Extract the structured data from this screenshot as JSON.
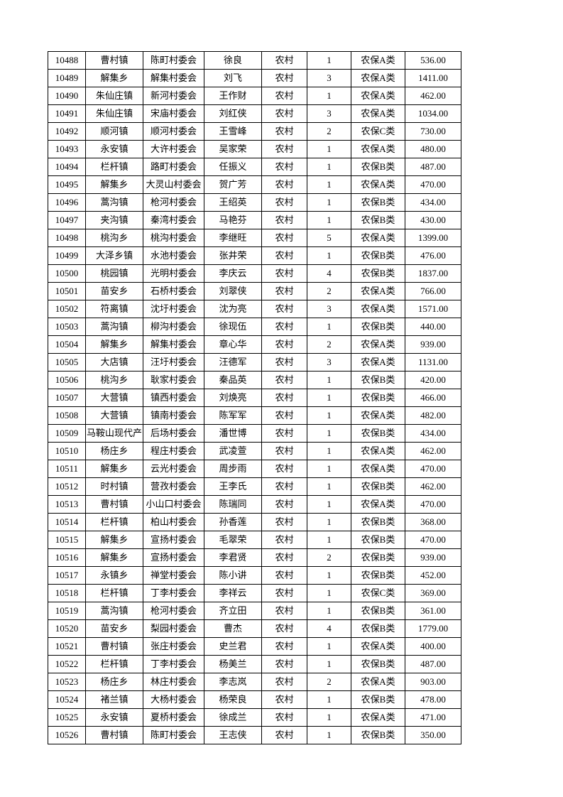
{
  "table": {
    "rows": [
      [
        "10488",
        "曹村镇",
        "陈町村委会",
        "徐良",
        "农村",
        "1",
        "农保A类",
        "536.00"
      ],
      [
        "10489",
        "解集乡",
        "解集村委会",
        "刘飞",
        "农村",
        "3",
        "农保A类",
        "1411.00"
      ],
      [
        "10490",
        "朱仙庄镇",
        "新河村委会",
        "王作财",
        "农村",
        "1",
        "农保A类",
        "462.00"
      ],
      [
        "10491",
        "朱仙庄镇",
        "宋庙村委会",
        "刘红侠",
        "农村",
        "3",
        "农保A类",
        "1034.00"
      ],
      [
        "10492",
        "顺河镇",
        "顺河村委会",
        "王雪峰",
        "农村",
        "2",
        "农保C类",
        "730.00"
      ],
      [
        "10493",
        "永安镇",
        "大许村委会",
        "吴家荣",
        "农村",
        "1",
        "农保A类",
        "480.00"
      ],
      [
        "10494",
        "栏杆镇",
        "路町村委会",
        "任振义",
        "农村",
        "1",
        "农保B类",
        "487.00"
      ],
      [
        "10495",
        "解集乡",
        "大灵山村委会",
        "贺广芳",
        "农村",
        "1",
        "农保A类",
        "470.00"
      ],
      [
        "10496",
        "蒿沟镇",
        "枪河村委会",
        "王绍英",
        "农村",
        "1",
        "农保B类",
        "434.00"
      ],
      [
        "10497",
        "夹沟镇",
        "秦湾村委会",
        "马艳芬",
        "农村",
        "1",
        "农保B类",
        "430.00"
      ],
      [
        "10498",
        "桃沟乡",
        "桃沟村委会",
        "李继旺",
        "农村",
        "5",
        "农保A类",
        "1399.00"
      ],
      [
        "10499",
        "大泽乡镇",
        "水池村委会",
        "张井荣",
        "农村",
        "1",
        "农保B类",
        "476.00"
      ],
      [
        "10500",
        "桃园镇",
        "光明村委会",
        "李庆云",
        "农村",
        "4",
        "农保B类",
        "1837.00"
      ],
      [
        "10501",
        "苗安乡",
        "石桥村委会",
        "刘翠侠",
        "农村",
        "2",
        "农保A类",
        "766.00"
      ],
      [
        "10502",
        "符离镇",
        "沈圩村委会",
        "沈为亮",
        "农村",
        "3",
        "农保A类",
        "1571.00"
      ],
      [
        "10503",
        "蒿沟镇",
        "柳沟村委会",
        "徐现伍",
        "农村",
        "1",
        "农保B类",
        "440.00"
      ],
      [
        "10504",
        "解集乡",
        "解集村委会",
        "章心华",
        "农村",
        "2",
        "农保A类",
        "939.00"
      ],
      [
        "10505",
        "大店镇",
        "汪圩村委会",
        "汪德军",
        "农村",
        "3",
        "农保A类",
        "1131.00"
      ],
      [
        "10506",
        "桃沟乡",
        "耿家村委会",
        "秦品英",
        "农村",
        "1",
        "农保B类",
        "420.00"
      ],
      [
        "10507",
        "大营镇",
        "镇西村委会",
        "刘焕亮",
        "农村",
        "1",
        "农保B类",
        "466.00"
      ],
      [
        "10508",
        "大营镇",
        "镇南村委会",
        "陈军军",
        "农村",
        "1",
        "农保A类",
        "482.00"
      ],
      [
        "10509",
        "马鞍山现代产",
        "后场村委会",
        "潘世博",
        "农村",
        "1",
        "农保B类",
        "434.00"
      ],
      [
        "10510",
        "杨庄乡",
        "程庄村委会",
        "武凌萱",
        "农村",
        "1",
        "农保A类",
        "462.00"
      ],
      [
        "10511",
        "解集乡",
        "云光村委会",
        "周步雨",
        "农村",
        "1",
        "农保A类",
        "470.00"
      ],
      [
        "10512",
        "时村镇",
        "营孜村委会",
        "王李氏",
        "农村",
        "1",
        "农保B类",
        "462.00"
      ],
      [
        "10513",
        "曹村镇",
        "小山口村委会",
        "陈瑞同",
        "农村",
        "1",
        "农保A类",
        "470.00"
      ],
      [
        "10514",
        "栏杆镇",
        "柏山村委会",
        "孙香莲",
        "农村",
        "1",
        "农保B类",
        "368.00"
      ],
      [
        "10515",
        "解集乡",
        "宣扬村委会",
        "毛翠荣",
        "农村",
        "1",
        "农保B类",
        "470.00"
      ],
      [
        "10516",
        "解集乡",
        "宣扬村委会",
        "李君贤",
        "农村",
        "2",
        "农保B类",
        "939.00"
      ],
      [
        "10517",
        "永镇乡",
        "禅堂村委会",
        "陈小讲",
        "农村",
        "1",
        "农保B类",
        "452.00"
      ],
      [
        "10518",
        "栏杆镇",
        "丁李村委会",
        "李祥云",
        "农村",
        "1",
        "农保C类",
        "369.00"
      ],
      [
        "10519",
        "蒿沟镇",
        "枪河村委会",
        "齐立田",
        "农村",
        "1",
        "农保B类",
        "361.00"
      ],
      [
        "10520",
        "苗安乡",
        "梨园村委会",
        "曹杰",
        "农村",
        "4",
        "农保B类",
        "1779.00"
      ],
      [
        "10521",
        "曹村镇",
        "张庄村委会",
        "史兰君",
        "农村",
        "1",
        "农保A类",
        "400.00"
      ],
      [
        "10522",
        "栏杆镇",
        "丁李村委会",
        "杨美兰",
        "农村",
        "1",
        "农保B类",
        "487.00"
      ],
      [
        "10523",
        "杨庄乡",
        "林庄村委会",
        "李志岚",
        "农村",
        "2",
        "农保A类",
        "903.00"
      ],
      [
        "10524",
        "褚兰镇",
        "大杨村委会",
        "杨荣良",
        "农村",
        "1",
        "农保B类",
        "478.00"
      ],
      [
        "10525",
        "永安镇",
        "夏桥村委会",
        "徐成兰",
        "农村",
        "1",
        "农保A类",
        "471.00"
      ],
      [
        "10526",
        "曹村镇",
        "陈町村委会",
        "王志侠",
        "农村",
        "1",
        "农保B类",
        "350.00"
      ]
    ]
  }
}
